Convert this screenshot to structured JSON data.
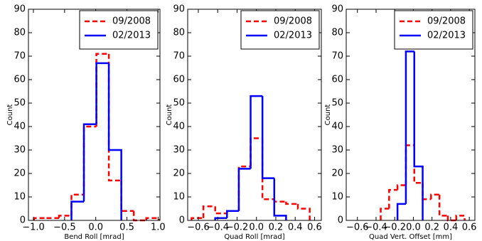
{
  "chart_data": [
    {
      "type": "histogram",
      "xlabel": "Bend Roll [mrad]",
      "ylabel": "Count",
      "xlim": [
        -1.08,
        1.03
      ],
      "ylim": [
        0,
        90
      ],
      "xticks": [
        {
          "value": -1.0,
          "label": "−1.0"
        },
        {
          "value": -0.5,
          "label": "−0.5"
        },
        {
          "value": 0.0,
          "label": "0.0"
        },
        {
          "value": 0.5,
          "label": "0.5"
        },
        {
          "value": 1.0,
          "label": "1.0"
        }
      ],
      "yticks": [
        0,
        10,
        20,
        30,
        40,
        50,
        60,
        70,
        80,
        90
      ],
      "legend": "upper right",
      "series": [
        {
          "name": "09/2008",
          "color": "#ff0000",
          "linestyle": "dashed",
          "bins": [
            -0.99,
            -0.79,
            -0.59,
            -0.39,
            -0.19,
            0.01,
            0.21,
            0.41,
            0.61,
            0.81,
            1.01
          ],
          "values": [
            1,
            1,
            2,
            11,
            40,
            71,
            17,
            4,
            0,
            1
          ]
        },
        {
          "name": "02/2013",
          "color": "#0000ff",
          "linestyle": "solid",
          "bins": [
            -0.39,
            -0.19,
            0.01,
            0.21,
            0.41
          ],
          "values": [
            8,
            41,
            67,
            30
          ]
        }
      ]
    },
    {
      "type": "histogram",
      "xlabel": "Quad Roll [mrad]",
      "ylabel": "Count",
      "xlim": [
        -0.71,
        0.67
      ],
      "ylim": [
        0,
        90
      ],
      "xticks": [
        {
          "value": -0.6,
          "label": "−0.6"
        },
        {
          "value": -0.4,
          "label": "−0.4"
        },
        {
          "value": -0.2,
          "label": "−0.2"
        },
        {
          "value": 0.0,
          "label": "0.0"
        },
        0.2,
        0.4,
        0.6
      ],
      "yticks": [
        0,
        10,
        20,
        30,
        40,
        50,
        60,
        70,
        80,
        90
      ],
      "legend": "upper right",
      "series": [
        {
          "name": "09/2008",
          "color": "#ff0000",
          "linestyle": "dashed",
          "bins": [
            -0.67,
            -0.548,
            -0.426,
            -0.304,
            -0.182,
            -0.06,
            0.062,
            0.184,
            0.306,
            0.428,
            0.55
          ],
          "values": [
            1,
            6,
            3,
            4,
            23,
            35,
            9,
            8,
            7,
            5
          ]
        },
        {
          "name": "02/2013",
          "color": "#0000ff",
          "linestyle": "solid",
          "bins": [
            -0.426,
            -0.304,
            -0.182,
            -0.06,
            0.062,
            0.184,
            0.306
          ],
          "values": [
            1,
            4,
            22,
            53,
            18,
            2
          ]
        }
      ]
    },
    {
      "type": "histogram",
      "xlabel": "Quad Vert. Offset [mm]",
      "ylabel": "Count",
      "xlim": [
        -0.72,
        0.66
      ],
      "ylim": [
        0,
        90
      ],
      "xticks": [
        {
          "value": -0.6,
          "label": "−0.6"
        },
        {
          "value": -0.4,
          "label": "−0.4"
        },
        {
          "value": -0.2,
          "label": "−0.2"
        },
        {
          "value": 0.0,
          "label": "0.0"
        },
        0.2,
        0.4,
        0.6
      ],
      "yticks": [
        0,
        10,
        20,
        30,
        40,
        50,
        60,
        70,
        80,
        90
      ],
      "legend": "upper right",
      "series": [
        {
          "name": "09/2008",
          "color": "#ff0000",
          "linestyle": "dashed",
          "bins": [
            -0.35,
            -0.26,
            -0.17,
            -0.08,
            0.01,
            0.1,
            0.19,
            0.28,
            0.37,
            0.46,
            0.55
          ],
          "values": [
            5,
            13,
            15,
            32,
            16,
            9,
            11,
            2,
            0,
            2
          ]
        },
        {
          "name": "02/2013",
          "color": "#0000ff",
          "linestyle": "solid",
          "bins": [
            -0.17,
            -0.08,
            0.01,
            0.1
          ],
          "values": [
            7,
            72,
            23
          ]
        }
      ]
    }
  ]
}
